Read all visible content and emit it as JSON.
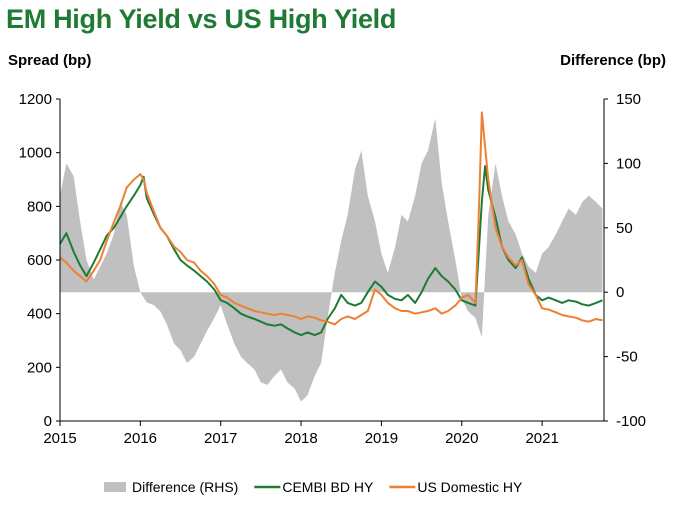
{
  "chart_data": {
    "type": "line",
    "title": "EM High Yield vs US High Yield",
    "ylabel_left": "Spread (bp)",
    "ylabel_right": "Difference (bp)",
    "xlabel": "",
    "ylim_left": [
      0,
      1200
    ],
    "ylim_right": [
      -100,
      150
    ],
    "xlim": [
      2015,
      2021.77
    ],
    "x_ticks": [
      "2015",
      "2016",
      "2017",
      "2018",
      "2019",
      "2020",
      "2021"
    ],
    "y_left_ticks": [
      "0",
      "200",
      "400",
      "600",
      "800",
      "1000",
      "1200"
    ],
    "y_right_ticks": [
      "-100",
      "-50",
      "0",
      "50",
      "100",
      "150"
    ],
    "grid": false,
    "legend_position": "bottom",
    "series": [
      {
        "name": "Difference (RHS)",
        "kind": "area",
        "axis": "right",
        "color": "#c0c0c0",
        "x": [
          2015.0,
          2015.08,
          2015.17,
          2015.25,
          2015.33,
          2015.42,
          2015.5,
          2015.58,
          2015.67,
          2015.75,
          2015.83,
          2015.92,
          2016.0,
          2016.08,
          2016.17,
          2016.25,
          2016.33,
          2016.42,
          2016.5,
          2016.58,
          2016.67,
          2016.75,
          2016.83,
          2016.92,
          2017.0,
          2017.08,
          2017.17,
          2017.25,
          2017.33,
          2017.42,
          2017.5,
          2017.58,
          2017.67,
          2017.75,
          2017.83,
          2017.92,
          2018.0,
          2018.08,
          2018.17,
          2018.25,
          2018.33,
          2018.42,
          2018.5,
          2018.58,
          2018.67,
          2018.75,
          2018.83,
          2018.92,
          2019.0,
          2019.08,
          2019.17,
          2019.25,
          2019.33,
          2019.42,
          2019.5,
          2019.58,
          2019.67,
          2019.75,
          2019.83,
          2019.92,
          2020.0,
          2020.08,
          2020.17,
          2020.25,
          2020.33,
          2020.42,
          2020.5,
          2020.58,
          2020.67,
          2020.75,
          2020.83,
          2020.92,
          2021.0,
          2021.08,
          2021.17,
          2021.25,
          2021.33,
          2021.42,
          2021.5,
          2021.58,
          2021.67,
          2021.75
        ],
        "values": [
          75,
          100,
          90,
          55,
          25,
          10,
          20,
          30,
          45,
          70,
          60,
          20,
          0,
          -8,
          -10,
          -15,
          -25,
          -40,
          -45,
          -55,
          -50,
          -40,
          -30,
          -20,
          -10,
          -25,
          -40,
          -50,
          -55,
          -60,
          -70,
          -72,
          -65,
          -60,
          -70,
          -75,
          -85,
          -80,
          -65,
          -55,
          -20,
          15,
          40,
          60,
          95,
          110,
          75,
          55,
          30,
          15,
          35,
          60,
          55,
          75,
          100,
          110,
          135,
          85,
          55,
          25,
          -5,
          -15,
          -20,
          -35,
          60,
          100,
          75,
          55,
          45,
          30,
          20,
          15,
          30,
          35,
          45,
          55,
          65,
          60,
          70,
          75,
          70,
          65
        ]
      },
      {
        "name": "CEMBI BD HY",
        "kind": "line",
        "axis": "left",
        "color": "#1e7a34",
        "x": [
          2015.0,
          2015.08,
          2015.17,
          2015.25,
          2015.33,
          2015.42,
          2015.5,
          2015.58,
          2015.67,
          2015.75,
          2015.83,
          2015.92,
          2016.0,
          2016.04,
          2016.08,
          2016.17,
          2016.25,
          2016.33,
          2016.42,
          2016.5,
          2016.58,
          2016.67,
          2016.75,
          2016.83,
          2016.92,
          2017.0,
          2017.08,
          2017.17,
          2017.25,
          2017.33,
          2017.42,
          2017.5,
          2017.58,
          2017.67,
          2017.75,
          2017.83,
          2017.92,
          2018.0,
          2018.08,
          2018.17,
          2018.25,
          2018.33,
          2018.42,
          2018.5,
          2018.58,
          2018.67,
          2018.75,
          2018.83,
          2018.92,
          2019.0,
          2019.08,
          2019.17,
          2019.25,
          2019.33,
          2019.42,
          2019.5,
          2019.58,
          2019.67,
          2019.75,
          2019.83,
          2019.92,
          2020.0,
          2020.08,
          2020.17,
          2020.21,
          2020.25,
          2020.29,
          2020.33,
          2020.42,
          2020.5,
          2020.58,
          2020.67,
          2020.75,
          2020.83,
          2020.92,
          2021.0,
          2021.08,
          2021.17,
          2021.25,
          2021.33,
          2021.42,
          2021.5,
          2021.58,
          2021.67,
          2021.75
        ],
        "values": [
          660,
          700,
          630,
          580,
          540,
          590,
          640,
          690,
          720,
          760,
          800,
          840,
          880,
          910,
          830,
          770,
          720,
          690,
          640,
          600,
          580,
          560,
          540,
          520,
          490,
          450,
          440,
          420,
          400,
          390,
          380,
          370,
          360,
          355,
          360,
          345,
          330,
          320,
          330,
          320,
          330,
          380,
          420,
          470,
          440,
          430,
          440,
          480,
          520,
          500,
          470,
          455,
          450,
          470,
          440,
          480,
          530,
          570,
          540,
          520,
          490,
          450,
          440,
          430,
          620,
          820,
          950,
          860,
          760,
          650,
          600,
          570,
          610,
          530,
          470,
          450,
          460,
          450,
          440,
          450,
          445,
          435,
          430,
          440,
          450
        ]
      },
      {
        "name": "US Domestic HY",
        "kind": "line",
        "axis": "left",
        "color": "#ee8034",
        "x": [
          2015.0,
          2015.08,
          2015.17,
          2015.25,
          2015.33,
          2015.42,
          2015.5,
          2015.58,
          2015.67,
          2015.75,
          2015.83,
          2015.92,
          2016.0,
          2016.04,
          2016.08,
          2016.17,
          2016.25,
          2016.33,
          2016.42,
          2016.5,
          2016.58,
          2016.67,
          2016.75,
          2016.83,
          2016.92,
          2017.0,
          2017.08,
          2017.17,
          2017.25,
          2017.33,
          2017.42,
          2017.5,
          2017.58,
          2017.67,
          2017.75,
          2017.83,
          2017.92,
          2018.0,
          2018.08,
          2018.17,
          2018.25,
          2018.33,
          2018.42,
          2018.5,
          2018.58,
          2018.67,
          2018.75,
          2018.83,
          2018.92,
          2019.0,
          2019.08,
          2019.17,
          2019.25,
          2019.33,
          2019.42,
          2019.5,
          2019.58,
          2019.67,
          2019.75,
          2019.83,
          2019.92,
          2020.0,
          2020.08,
          2020.17,
          2020.21,
          2020.25,
          2020.29,
          2020.33,
          2020.42,
          2020.5,
          2020.58,
          2020.67,
          2020.75,
          2020.83,
          2020.92,
          2021.0,
          2021.08,
          2021.17,
          2021.25,
          2021.33,
          2021.42,
          2021.5,
          2021.58,
          2021.67,
          2021.75
        ],
        "values": [
          610,
          590,
          560,
          540,
          520,
          560,
          600,
          670,
          740,
          800,
          870,
          900,
          920,
          900,
          850,
          780,
          720,
          690,
          650,
          630,
          600,
          590,
          560,
          540,
          510,
          470,
          460,
          440,
          430,
          420,
          410,
          405,
          400,
          395,
          400,
          395,
          390,
          380,
          390,
          385,
          375,
          370,
          360,
          380,
          390,
          380,
          395,
          410,
          490,
          470,
          440,
          420,
          410,
          410,
          400,
          405,
          410,
          420,
          400,
          410,
          430,
          460,
          470,
          440,
          750,
          1150,
          1020,
          900,
          720,
          650,
          610,
          580,
          600,
          510,
          470,
          420,
          415,
          405,
          395,
          390,
          385,
          375,
          370,
          380,
          375
        ]
      }
    ]
  }
}
